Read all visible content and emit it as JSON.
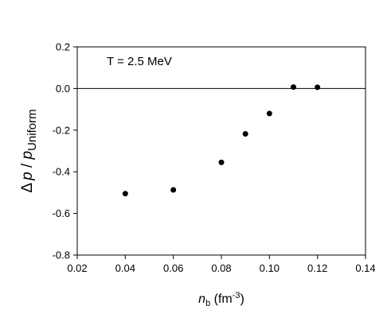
{
  "chart_data": {
    "type": "scatter",
    "annotation": "T = 2.5 MeV",
    "xlabel": {
      "main": "n",
      "sub": "b",
      "unit_open": " (fm",
      "unit_sup": "-3",
      "unit_close": ")"
    },
    "ylabel": {
      "prefix": "Δ",
      "var": "p",
      "sep": " / ",
      "var2": "p",
      "sub": "Uniform"
    },
    "xlim": [
      0.02,
      0.14
    ],
    "ylim": [
      -0.8,
      0.2
    ],
    "x_ticks": [
      0.02,
      0.04,
      0.06,
      0.08,
      0.1,
      0.12,
      0.14
    ],
    "x_tick_labels": [
      "0.02",
      "0.04",
      "0.06",
      "0.08",
      "0.10",
      "0.12",
      "0.14"
    ],
    "y_ticks": [
      -0.8,
      -0.6,
      -0.4,
      -0.2,
      0.0,
      0.2
    ],
    "y_tick_labels": [
      "-0.8",
      "-0.6",
      "-0.4",
      "-0.2",
      "0.0",
      "0.2"
    ],
    "reference_line_y": 0.0,
    "grid": false,
    "series": [
      {
        "x": [
          0.04,
          0.06,
          0.08,
          0.09,
          0.1,
          0.11,
          0.12
        ],
        "y": [
          -0.505,
          -0.487,
          -0.355,
          -0.218,
          -0.12,
          0.007,
          0.006
        ]
      }
    ]
  }
}
